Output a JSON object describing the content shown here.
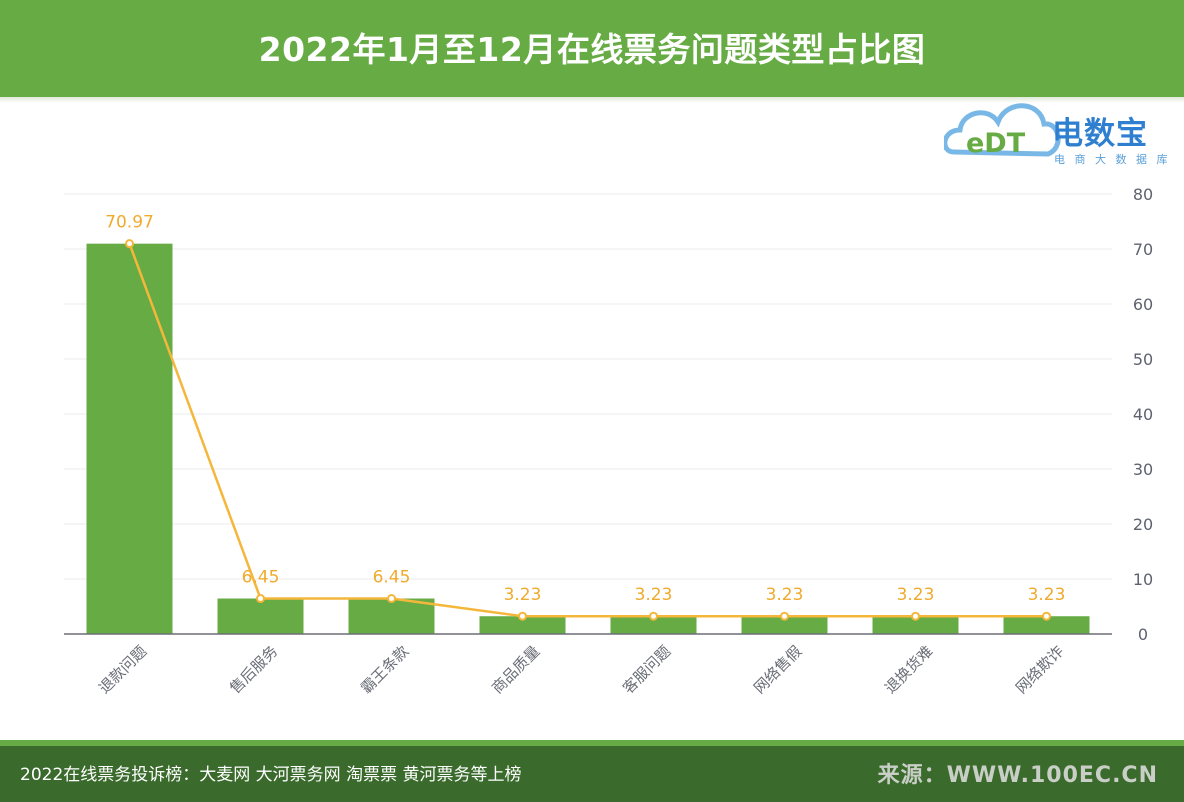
{
  "header": {
    "title": "2022年1月至12月在线票务问题类型占比图"
  },
  "logo": {
    "name": "电数宝",
    "mark": "eDT",
    "sub": "电 商 大 数 据 库"
  },
  "colors": {
    "bar": "#67ab45",
    "line": "#f5b73b",
    "label": "#f0ab2e",
    "header": "#67ab45",
    "footer": "#3a6b2c"
  },
  "chart_data": {
    "type": "bar",
    "categories": [
      "退款问题",
      "售后服务",
      "霸王条款",
      "商品质量",
      "客服问题",
      "网络售假",
      "退换货难",
      "网络欺诈"
    ],
    "series": [
      {
        "values": [
          70.97,
          6.45,
          6.45,
          3.23,
          3.23,
          3.23,
          3.23,
          3.23
        ]
      }
    ],
    "overlay_line": true,
    "ylim": [
      0,
      80
    ],
    "yticks": [
      "0",
      "10",
      "20",
      "30",
      "40",
      "50",
      "60",
      "70",
      "80"
    ],
    "y_axis_side": "right",
    "grid": true,
    "title": "",
    "xlabel": "",
    "ylabel": ""
  },
  "footer": {
    "caption": "2022在线票务投诉榜：大麦网 大河票务网 淘票票 黄河票务等上榜",
    "source": "来源：WWW.100EC.CN"
  }
}
